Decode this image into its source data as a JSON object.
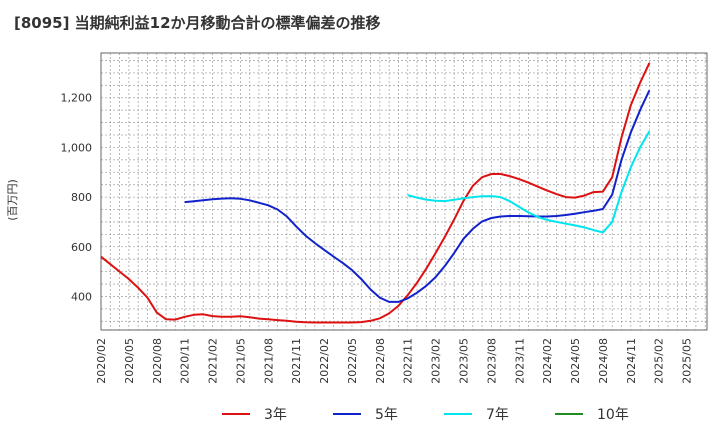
{
  "chart_data": {
    "type": "line",
    "title": "[8095]  当期純利益12か月移動合計の標準偏差の推移",
    "ylabel": "(百万円)",
    "xlabel": "",
    "ylim": [
      265,
      1380
    ],
    "yticks": [
      400,
      600,
      800,
      1000,
      1200
    ],
    "ytick_labels": [
      "400",
      "600",
      "800",
      "1,000",
      "1,200"
    ],
    "xtick_labels": [
      "2020/02",
      "2020/05",
      "2020/08",
      "2020/11",
      "2021/02",
      "2021/05",
      "2021/08",
      "2021/11",
      "2022/02",
      "2022/05",
      "2022/08",
      "2022/11",
      "2023/02",
      "2023/05",
      "2023/08",
      "2023/11",
      "2024/02",
      "2024/05",
      "2024/08",
      "2024/11",
      "2025/02",
      "2025/05"
    ],
    "grid": true,
    "legend_position": "bottom",
    "series": [
      {
        "name": "3年",
        "color": "#dd1111",
        "points": [
          [
            "2020/02",
            560
          ],
          [
            "2020/03",
            530
          ],
          [
            "2020/04",
            500
          ],
          [
            "2020/05",
            470
          ],
          [
            "2020/06",
            435
          ],
          [
            "2020/07",
            395
          ],
          [
            "2020/08",
            335
          ],
          [
            "2020/09",
            308
          ],
          [
            "2020/10",
            307
          ],
          [
            "2020/11",
            318
          ],
          [
            "2020/12",
            326
          ],
          [
            "2021/01",
            328
          ],
          [
            "2021/02",
            321
          ],
          [
            "2021/03",
            318
          ],
          [
            "2021/04",
            318
          ],
          [
            "2021/05",
            320
          ],
          [
            "2021/06",
            316
          ],
          [
            "2021/07",
            311
          ],
          [
            "2021/08",
            308
          ],
          [
            "2021/09",
            305
          ],
          [
            "2021/10",
            302
          ],
          [
            "2021/11",
            298
          ],
          [
            "2021/12",
            296
          ],
          [
            "2022/01",
            295
          ],
          [
            "2022/02",
            295
          ],
          [
            "2022/03",
            295
          ],
          [
            "2022/04",
            295
          ],
          [
            "2022/05",
            295
          ],
          [
            "2022/06",
            297
          ],
          [
            "2022/07",
            302
          ],
          [
            "2022/08",
            312
          ],
          [
            "2022/09",
            332
          ],
          [
            "2022/10",
            362
          ],
          [
            "2022/11",
            405
          ],
          [
            "2022/12",
            455
          ],
          [
            "2023/01",
            512
          ],
          [
            "2023/02",
            575
          ],
          [
            "2023/03",
            640
          ],
          [
            "2023/04",
            710
          ],
          [
            "2023/05",
            785
          ],
          [
            "2023/06",
            845
          ],
          [
            "2023/07",
            880
          ],
          [
            "2023/08",
            893
          ],
          [
            "2023/09",
            893
          ],
          [
            "2023/10",
            884
          ],
          [
            "2023/11",
            872
          ],
          [
            "2023/12",
            858
          ],
          [
            "2024/01",
            842
          ],
          [
            "2024/02",
            826
          ],
          [
            "2024/03",
            812
          ],
          [
            "2024/04",
            800
          ],
          [
            "2024/05",
            798
          ],
          [
            "2024/06",
            806
          ],
          [
            "2024/07",
            820
          ],
          [
            "2024/08",
            822
          ],
          [
            "2024/09",
            880
          ],
          [
            "2024/10",
            1040
          ],
          [
            "2024/11",
            1170
          ],
          [
            "2024/12",
            1260
          ],
          [
            "2025/01",
            1340
          ]
        ]
      },
      {
        "name": "5年",
        "color": "#1122cc",
        "points": [
          [
            "2020/11",
            780
          ],
          [
            "2020/12",
            783
          ],
          [
            "2021/01",
            787
          ],
          [
            "2021/02",
            791
          ],
          [
            "2021/03",
            794
          ],
          [
            "2021/04",
            795
          ],
          [
            "2021/05",
            793
          ],
          [
            "2021/06",
            787
          ],
          [
            "2021/07",
            777
          ],
          [
            "2021/08",
            767
          ],
          [
            "2021/09",
            750
          ],
          [
            "2021/10",
            722
          ],
          [
            "2021/11",
            682
          ],
          [
            "2021/12",
            645
          ],
          [
            "2022/01",
            615
          ],
          [
            "2022/02",
            588
          ],
          [
            "2022/03",
            561
          ],
          [
            "2022/04",
            535
          ],
          [
            "2022/05",
            506
          ],
          [
            "2022/06",
            470
          ],
          [
            "2022/07",
            428
          ],
          [
            "2022/08",
            395
          ],
          [
            "2022/09",
            378
          ],
          [
            "2022/10",
            378
          ],
          [
            "2022/11",
            392
          ],
          [
            "2022/12",
            415
          ],
          [
            "2023/01",
            443
          ],
          [
            "2023/02",
            478
          ],
          [
            "2023/03",
            523
          ],
          [
            "2023/04",
            575
          ],
          [
            "2023/05",
            632
          ],
          [
            "2023/06",
            672
          ],
          [
            "2023/07",
            702
          ],
          [
            "2023/08",
            716
          ],
          [
            "2023/09",
            722
          ],
          [
            "2023/10",
            724
          ],
          [
            "2023/11",
            724
          ],
          [
            "2023/12",
            723
          ],
          [
            "2024/01",
            722
          ],
          [
            "2024/02",
            722
          ],
          [
            "2024/03",
            724
          ],
          [
            "2024/04",
            728
          ],
          [
            "2024/05",
            733
          ],
          [
            "2024/06",
            739
          ],
          [
            "2024/07",
            745
          ],
          [
            "2024/08",
            752
          ],
          [
            "2024/09",
            810
          ],
          [
            "2024/10",
            950
          ],
          [
            "2024/11",
            1060
          ],
          [
            "2024/12",
            1150
          ],
          [
            "2025/01",
            1230
          ]
        ]
      },
      {
        "name": "7年",
        "color": "#00e5ee",
        "points": [
          [
            "2022/11",
            808
          ],
          [
            "2022/12",
            798
          ],
          [
            "2023/01",
            790
          ],
          [
            "2023/02",
            785
          ],
          [
            "2023/03",
            784
          ],
          [
            "2023/04",
            789
          ],
          [
            "2023/05",
            795
          ],
          [
            "2023/06",
            800
          ],
          [
            "2023/07",
            803
          ],
          [
            "2023/08",
            804
          ],
          [
            "2023/09",
            800
          ],
          [
            "2023/10",
            783
          ],
          [
            "2023/11",
            760
          ],
          [
            "2023/12",
            738
          ],
          [
            "2024/01",
            720
          ],
          [
            "2024/02",
            708
          ],
          [
            "2024/03",
            700
          ],
          [
            "2024/04",
            693
          ],
          [
            "2024/05",
            686
          ],
          [
            "2024/06",
            678
          ],
          [
            "2024/07",
            667
          ],
          [
            "2024/08",
            658
          ],
          [
            "2024/09",
            700
          ],
          [
            "2024/10",
            820
          ],
          [
            "2024/11",
            920
          ],
          [
            "2024/12",
            1000
          ],
          [
            "2025/01",
            1065
          ]
        ]
      },
      {
        "name": "10年",
        "color": "#228b22",
        "points": []
      }
    ]
  }
}
